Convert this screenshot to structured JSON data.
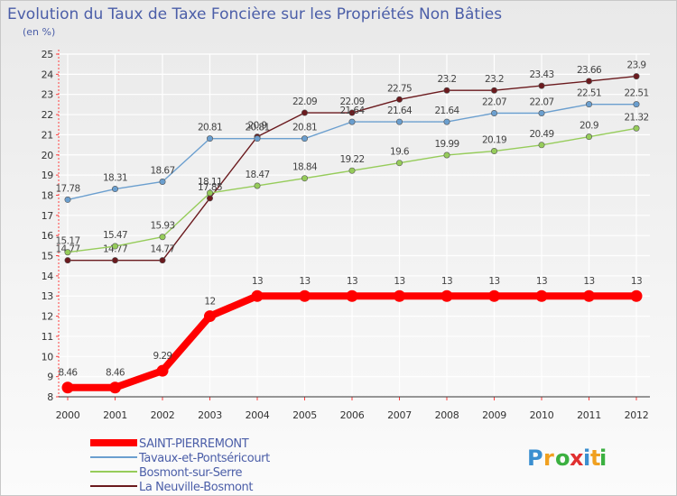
{
  "chart_data": {
    "type": "line",
    "title": "Evolution du Taux de Taxe Foncière sur les Propriétés Non Bâties",
    "ylabel": "(en %)",
    "xlabel": "",
    "x": [
      "2000",
      "2001",
      "2002",
      "2003",
      "2004",
      "2005",
      "2006",
      "2007",
      "2008",
      "2009",
      "2010",
      "2011",
      "2012"
    ],
    "ylim": [
      8,
      25
    ],
    "yticks": [
      "8",
      "9",
      "10",
      "11",
      "12",
      "13",
      "14",
      "15",
      "16",
      "17",
      "18",
      "19",
      "20",
      "21",
      "22",
      "23",
      "24",
      "25"
    ],
    "grid": true,
    "legend_position": "bottom-left",
    "series": [
      {
        "name": "La Neuville-Bosmont",
        "color": "#6b1a1e",
        "values": [
          14.77,
          14.77,
          14.77,
          17.85,
          20.9,
          22.09,
          22.09,
          22.75,
          23.2,
          23.2,
          23.43,
          23.66,
          23.9
        ],
        "labels": [
          "14.77",
          "14.77",
          "14.77",
          "17.85",
          "20.9",
          "22.09",
          "22.09",
          "22.75",
          "23.2",
          "23.2",
          "23.43",
          "23.66",
          "23.9"
        ]
      },
      {
        "name": "Bosmont-sur-Serre",
        "color": "#96cc5a",
        "values": [
          15.17,
          15.47,
          15.93,
          18.11,
          18.47,
          18.84,
          19.22,
          19.6,
          19.99,
          20.19,
          20.49,
          20.9,
          21.32
        ],
        "labels": [
          "15.17",
          "15.47",
          "15.93",
          "18.11",
          "18.47",
          "18.84",
          "19.22",
          "19.6",
          "19.99",
          "20.19",
          "20.49",
          "20.9",
          "21.32"
        ]
      },
      {
        "name": "Tavaux-et-Pontséricourt",
        "color": "#6b9fcf",
        "values": [
          17.78,
          18.31,
          18.67,
          20.81,
          20.81,
          20.81,
          21.64,
          21.64,
          21.64,
          22.07,
          22.07,
          22.51,
          22.51
        ],
        "labels": [
          "17.78",
          "18.31",
          "18.67",
          "20.81",
          "20.81",
          "20.81",
          "21.64",
          "21.64",
          "21.64",
          "22.07",
          "22.07",
          "22.51",
          "22.51"
        ]
      },
      {
        "name": "SAINT-PIERREMONT",
        "color": "#ff0000",
        "values": [
          8.46,
          8.46,
          9.29,
          12,
          13,
          13,
          13,
          13,
          13,
          13,
          13,
          13,
          13
        ],
        "labels": [
          "8.46",
          "8.46",
          "9.29",
          "12",
          "13",
          "13",
          "13",
          "13",
          "13",
          "13",
          "13",
          "13",
          "13"
        ]
      }
    ],
    "legend_order": [
      "SAINT-PIERREMONT",
      "Tavaux-et-Pontséricourt",
      "Bosmont-sur-Serre",
      "La Neuville-Bosmont"
    ]
  },
  "logo": {
    "letters": [
      "P",
      "r",
      "o",
      "x",
      "i",
      "t",
      "i"
    ],
    "colors": [
      "#3b8fd0",
      "#f0a020",
      "#3bb040",
      "#e03030",
      "#3b8fd0",
      "#f0a020",
      "#3bb040"
    ]
  }
}
